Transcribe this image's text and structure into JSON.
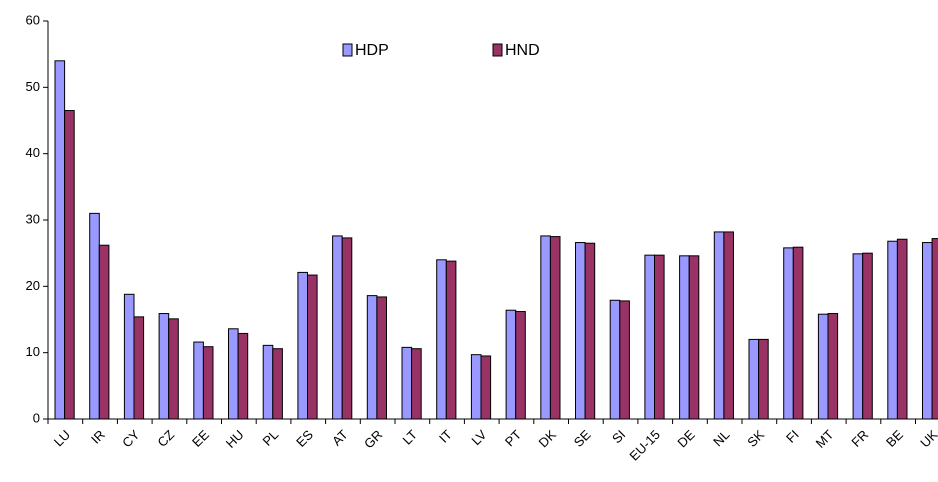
{
  "chart_data": {
    "type": "bar",
    "categories": [
      "LU",
      "IR",
      "CY",
      "CZ",
      "EE",
      "HU",
      "PL",
      "ES",
      "AT",
      "GR",
      "LT",
      "IT",
      "LV",
      "PT",
      "DK",
      "SE",
      "SI",
      "EU-15",
      "DE",
      "NL",
      "SK",
      "FI",
      "MT",
      "FR",
      "BE",
      "UK"
    ],
    "series": [
      {
        "name": "HDP",
        "color": "#9999ff",
        "values": [
          54,
          31,
          18.8,
          15.9,
          11.6,
          13.6,
          11.1,
          22.1,
          27.6,
          18.6,
          10.8,
          24,
          9.7,
          16.4,
          27.6,
          26.6,
          17.9,
          24.7,
          24.6,
          28.2,
          12,
          25.8,
          15.8,
          24.9,
          26.8,
          26.6
        ]
      },
      {
        "name": "HND",
        "color": "#993366",
        "values": [
          46.5,
          26.2,
          15.4,
          15.1,
          10.9,
          12.9,
          10.6,
          21.7,
          27.3,
          18.4,
          10.6,
          23.8,
          9.5,
          16.2,
          27.5,
          26.5,
          17.8,
          24.7,
          24.6,
          28.2,
          12,
          25.9,
          15.9,
          25,
          27.1,
          27.2
        ]
      }
    ],
    "ylim": [
      0,
      60
    ],
    "yticks": [
      0,
      10,
      20,
      30,
      40,
      50,
      60
    ],
    "grid": false
  }
}
